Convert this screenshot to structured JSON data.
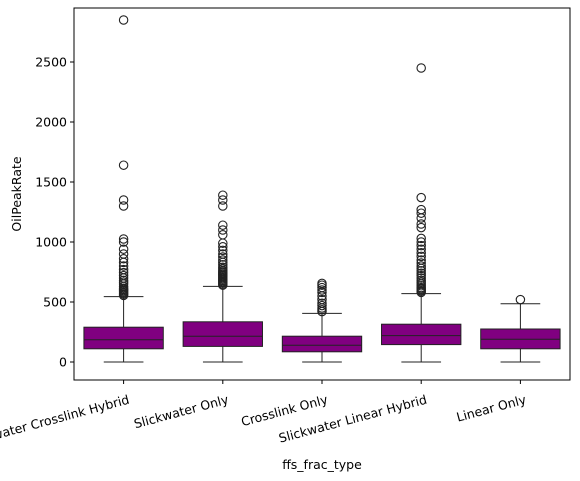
{
  "chart_data": {
    "type": "box",
    "title": "",
    "xlabel": "ffs_frac_type",
    "ylabel": "OilPeakRate",
    "ylim": [
      -150,
      2950
    ],
    "yticks": [
      0,
      500,
      1000,
      1500,
      2000,
      2500
    ],
    "grid": false,
    "legend": "none",
    "box_color": "#800080",
    "categories": [
      "Slickwater Crosslink Hybrid",
      "Slickwater Only",
      "Crosslink Only",
      "Slickwater Linear Hybrid",
      "Linear Only"
    ],
    "boxes": [
      {
        "category": "Slickwater Crosslink Hybrid",
        "whisker_low": 0,
        "q1": 110,
        "median": 185,
        "q3": 290,
        "whisker_high": 545,
        "outliers": [
          555,
          565,
          575,
          585,
          595,
          605,
          615,
          630,
          650,
          665,
          680,
          700,
          720,
          745,
          770,
          800,
          830,
          860,
          900,
          940,
          1000,
          1025,
          1300,
          1350,
          1640,
          2850
        ]
      },
      {
        "category": "Slickwater Only",
        "whisker_low": 0,
        "q1": 130,
        "median": 215,
        "q3": 335,
        "whisker_high": 630,
        "outliers": [
          640,
          650,
          660,
          670,
          680,
          690,
          700,
          710,
          720,
          730,
          740,
          750,
          760,
          775,
          790,
          810,
          830,
          850,
          875,
          900,
          930,
          960,
          990,
          1060,
          1100,
          1140,
          1300,
          1350,
          1390
        ]
      },
      {
        "category": "Crosslink Only",
        "whisker_low": 0,
        "q1": 85,
        "median": 140,
        "q3": 215,
        "whisker_high": 405,
        "outliers": [
          420,
          435,
          450,
          470,
          490,
          520,
          550,
          580,
          600,
          620,
          640,
          655
        ]
      },
      {
        "category": "Slickwater Linear Hybrid",
        "whisker_low": 0,
        "q1": 145,
        "median": 220,
        "q3": 315,
        "whisker_high": 570,
        "outliers": [
          580,
          590,
          600,
          610,
          620,
          635,
          650,
          665,
          680,
          700,
          720,
          740,
          760,
          780,
          800,
          825,
          850,
          880,
          910,
          940,
          970,
          1000,
          1030,
          1120,
          1150,
          1200,
          1240,
          1270,
          1370,
          2450
        ]
      },
      {
        "category": "Linear Only",
        "whisker_low": 0,
        "q1": 110,
        "median": 190,
        "q3": 275,
        "whisker_high": 485,
        "outliers": [
          520
        ]
      }
    ]
  }
}
